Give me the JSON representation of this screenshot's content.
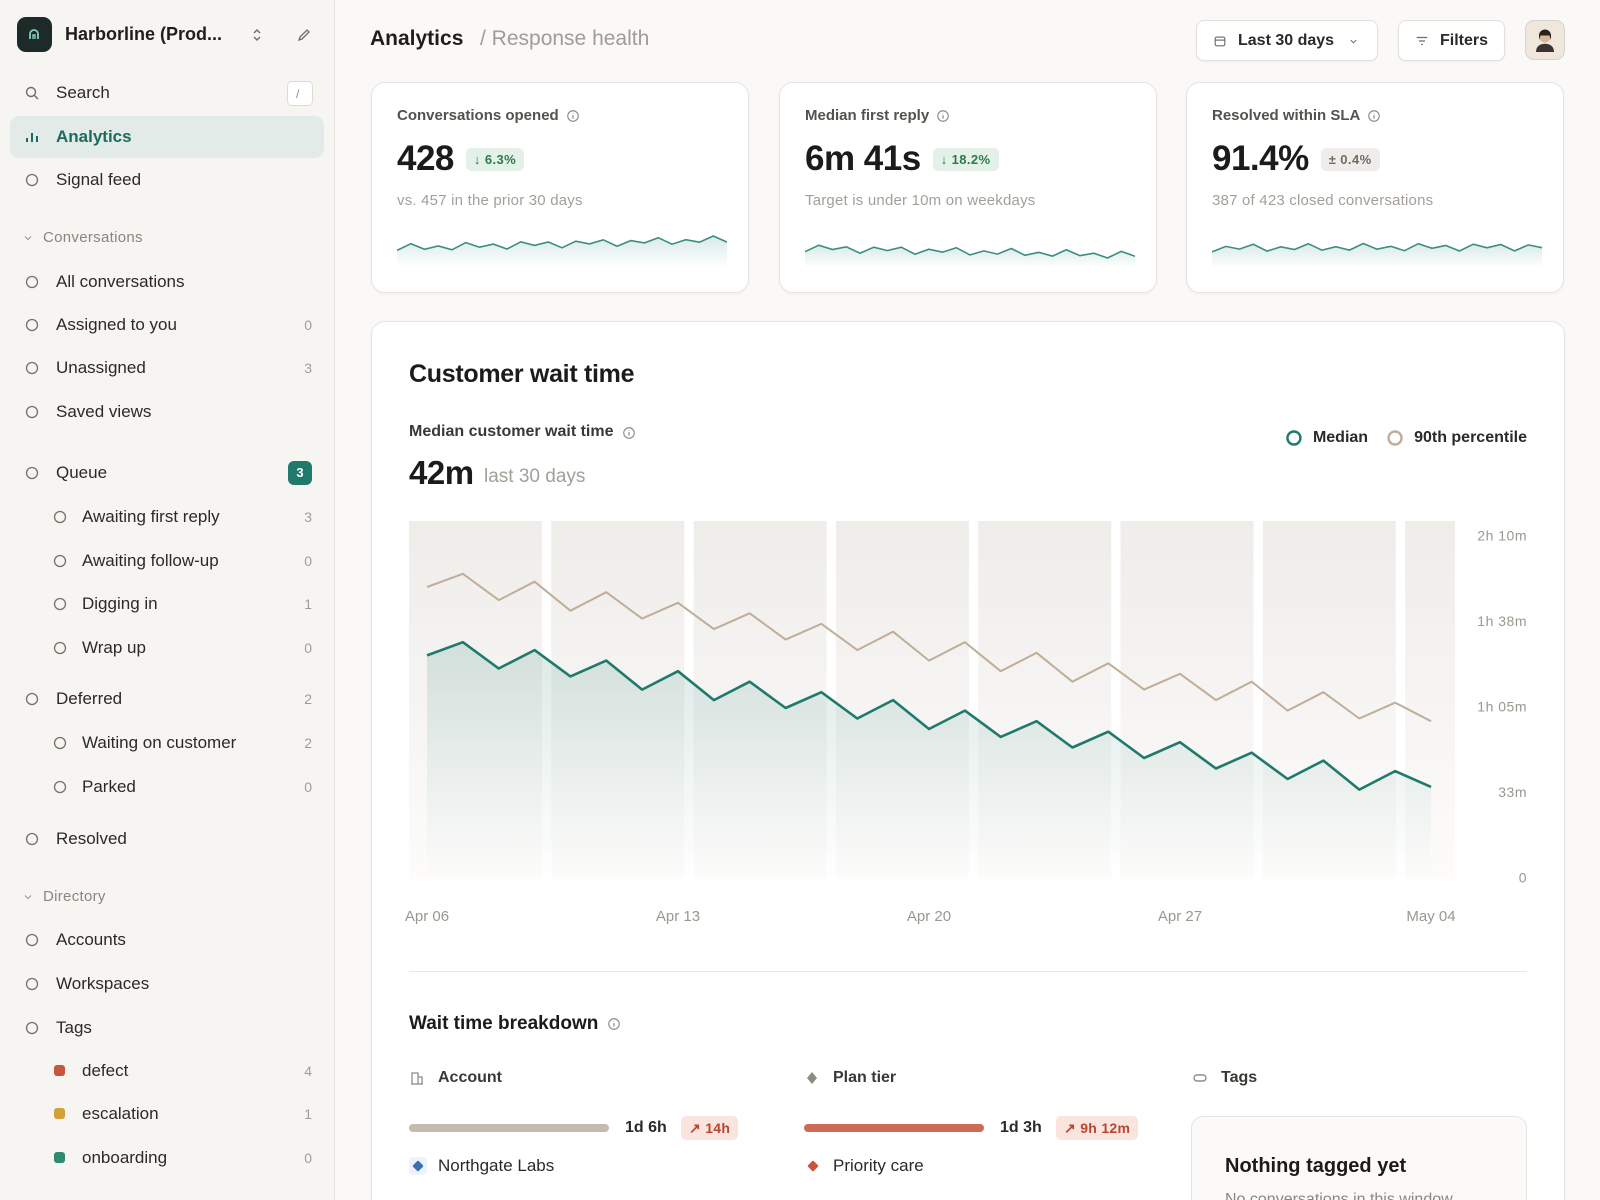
{
  "sidebar": {
    "workspace": "Harborline (Prod...",
    "search": "Search",
    "search_shortcut": "/",
    "items": [
      {
        "label": "Analytics",
        "style": "item",
        "active": true
      },
      {
        "label": "Signal feed",
        "style": "item"
      },
      {
        "label": "Conversations",
        "style": "section"
      },
      {
        "label": "All conversations",
        "style": "item"
      },
      {
        "label": "Assigned to you",
        "style": "item",
        "count": 0
      },
      {
        "label": "Unassigned",
        "style": "item",
        "count": 3
      },
      {
        "label": "Saved views",
        "style": "item"
      },
      {
        "label": "Queue",
        "style": "item",
        "count": 3,
        "badge": true
      },
      {
        "label": "Awaiting first reply",
        "style": "sub",
        "count": 3
      },
      {
        "label": "Awaiting follow-up",
        "style": "sub",
        "count": 0
      },
      {
        "label": "Digging in",
        "style": "sub",
        "count": 1
      },
      {
        "label": "Wrap up",
        "style": "sub",
        "count": 0
      },
      {
        "label": "Deferred",
        "style": "item",
        "count": 2
      },
      {
        "label": "Waiting on customer",
        "style": "sub",
        "count": 2
      },
      {
        "label": "Parked",
        "style": "sub",
        "count": 0
      },
      {
        "label": "Resolved",
        "style": "item"
      },
      {
        "label": "Directory",
        "style": "section"
      },
      {
        "label": "Accounts",
        "style": "item"
      },
      {
        "label": "Workspaces",
        "style": "item"
      },
      {
        "label": "Tags",
        "style": "item"
      },
      {
        "label": "defect",
        "style": "tag",
        "count": 4,
        "color": "#c8553d"
      },
      {
        "label": "escalation",
        "style": "tag",
        "count": 1,
        "color": "#d4a038"
      },
      {
        "label": "onboarding",
        "style": "tag",
        "count": 0,
        "color": "#2e8b6e"
      }
    ]
  },
  "header": {
    "title": "Analytics",
    "breadcrumb": "/ Response health",
    "range": "Last 30 days",
    "filters": "Filters"
  },
  "kpis": [
    {
      "label": "Conversations opened",
      "value": "428",
      "delta": "↓ 6.3%",
      "tone": "good",
      "note": "vs. 457 in the prior 30 days"
    },
    {
      "label": "Median first reply",
      "value": "6m 41s",
      "delta": "↓ 18.2%",
      "tone": "good",
      "note": "Target is under 10m on weekdays"
    },
    {
      "label": "Resolved within SLA",
      "value": "91.4%",
      "delta": "± 0.4%",
      "tone": "neutral",
      "note": "387 of 423 closed conversations"
    }
  ],
  "card": {
    "title": "Customer wait time"
  },
  "chart_data": {
    "type": "line",
    "title": "Median customer wait time",
    "headline": "42m",
    "headline_note": "last 30 days",
    "categories": [
      "Apr 06",
      null,
      null,
      null,
      null,
      null,
      null,
      "Apr 13",
      null,
      null,
      null,
      null,
      null,
      null,
      "Apr 20",
      null,
      null,
      null,
      null,
      null,
      null,
      "Apr 27",
      null,
      null,
      null,
      null,
      null,
      null,
      "May 04"
    ],
    "series": [
      {
        "name": "Median",
        "color": "#1f7a6c",
        "values": [
          85,
          90,
          80,
          87,
          77,
          83,
          72,
          79,
          68,
          75,
          65,
          71,
          61,
          68,
          57,
          64,
          54,
          60,
          50,
          56,
          46,
          52,
          42,
          48,
          38,
          45,
          34,
          41,
          35
        ]
      },
      {
        "name": "90th percentile",
        "color": "#bfae98",
        "values": [
          111,
          116,
          106,
          113,
          102,
          109,
          99,
          105,
          95,
          101,
          91,
          97,
          87,
          94,
          83,
          90,
          79,
          86,
          75,
          82,
          72,
          78,
          68,
          75,
          64,
          71,
          61,
          67,
          60
        ]
      }
    ],
    "ylim": [
      0,
      130
    ],
    "yticks": [
      0,
      {
        "value": 32.5,
        "label": "33m"
      },
      {
        "value": 65,
        "label": "1h 05m"
      },
      {
        "value": 97.5,
        "label": "1h 38m"
      },
      {
        "value": 130,
        "label": "2h 10m"
      }
    ],
    "legend": "top-right"
  },
  "breakdown": {
    "title": "Wait time breakdown",
    "columns": [
      {
        "label": "Account",
        "value": 30,
        "value_label": "1d 6h",
        "delta": "↗ 14h",
        "item": "Northgate Labs",
        "color": "#c3bab0",
        "item_color": "#3b6fb6"
      },
      {
        "label": "Plan tier",
        "value": 27,
        "value_label": "1d 3h",
        "delta": "↗ 9h 12m",
        "item": "Priority care",
        "color": "#cd6c55",
        "item_color": "#c8553d"
      },
      {
        "label": "Tags",
        "empty_title": "Nothing tagged yet",
        "empty_note": "No conversations in this window"
      }
    ]
  }
}
